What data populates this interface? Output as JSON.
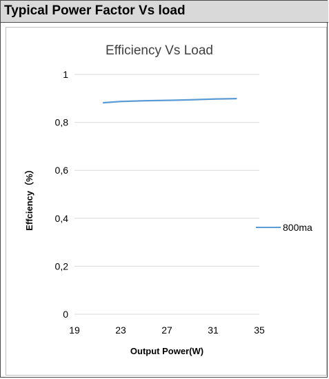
{
  "header": {
    "title": "Typical Power Factor Vs load"
  },
  "chart_data": {
    "type": "line",
    "title": "Efficiency Vs Load",
    "xlabel": "Output Power(W)",
    "ylabel": "Effciency（%）",
    "xlim": [
      19,
      35
    ],
    "ylim": [
      0,
      1
    ],
    "x_ticks": [
      "19",
      "23",
      "27",
      "31",
      "35"
    ],
    "y_ticks": [
      "0",
      "0,2",
      "0,4",
      "0,6",
      "0,8",
      "1"
    ],
    "grid": true,
    "legend": "right",
    "series": [
      {
        "name": "800ma",
        "color": "#5b9bd5",
        "x": [
          21.5,
          23,
          25,
          27,
          29,
          31,
          33
        ],
        "y": [
          0.882,
          0.887,
          0.89,
          0.892,
          0.894,
          0.897,
          0.899
        ]
      }
    ]
  }
}
